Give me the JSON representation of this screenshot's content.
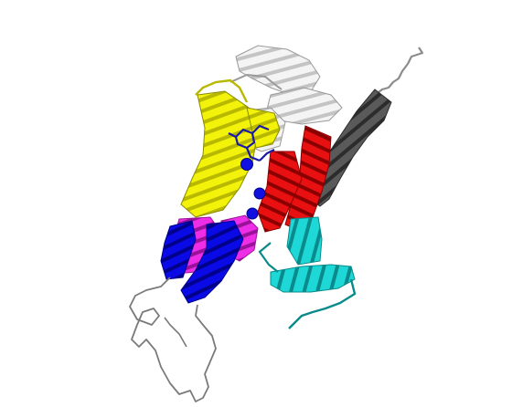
{
  "image": {
    "subject": "protein-ribbon-structure",
    "background": "#ffffff"
  },
  "colors": {
    "yellow": "#f2f20a",
    "yellow_dark": "#b8b800",
    "blue": "#0a0ae6",
    "blue_dark": "#00008a",
    "magenta": "#ee2ee6",
    "magenta_dark": "#9a129a",
    "red": "#e81010",
    "red_dark": "#8a0000",
    "cyan": "#1ed8d8",
    "cyan_dark": "#0a8a8a",
    "white": "#f4f4f4",
    "white_shade": "#b8b8b8",
    "gray": "#4a4a4a",
    "gray_light": "#8c8c8c",
    "loop": "#7a7a7a",
    "ligand": "#1a1aa8",
    "ion": "#1010e0"
  }
}
